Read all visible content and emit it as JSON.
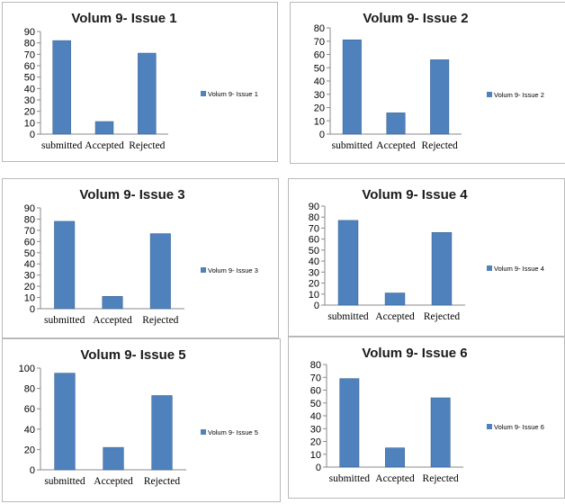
{
  "chart_data": [
    {
      "type": "bar",
      "title": "Volum 9- Issue 1",
      "categories": [
        "submitted",
        "Accepted",
        "Rejected"
      ],
      "series": [
        {
          "name": "Volum 9- Issue 1",
          "values": [
            82,
            11,
            71
          ]
        }
      ],
      "ylim": [
        0,
        90
      ],
      "yticks": [
        0,
        10,
        20,
        30,
        40,
        50,
        60,
        70,
        80,
        90
      ],
      "grid": false,
      "legend": "right",
      "color": "#4f81bd"
    },
    {
      "type": "bar",
      "title": "Volum 9- Issue 2",
      "categories": [
        "submitted",
        "Accepted",
        "Rejected"
      ],
      "series": [
        {
          "name": "Volum 9- Issue 2",
          "values": [
            71,
            16,
            56
          ]
        }
      ],
      "ylim": [
        0,
        80
      ],
      "yticks": [
        0,
        10,
        20,
        30,
        40,
        50,
        60,
        70,
        80
      ],
      "grid": false,
      "legend": "right",
      "color": "#4f81bd"
    },
    {
      "type": "bar",
      "title": "Volum 9- Issue 3",
      "categories": [
        "submitted",
        "Accepted",
        "Rejected"
      ],
      "series": [
        {
          "name": "Volum 9- Issue 3",
          "values": [
            78,
            11,
            67
          ]
        }
      ],
      "ylim": [
        0,
        90
      ],
      "yticks": [
        0,
        10,
        20,
        30,
        40,
        50,
        60,
        70,
        80,
        90
      ],
      "grid": false,
      "legend": "right",
      "color": "#4f81bd"
    },
    {
      "type": "bar",
      "title": "Volum 9- Issue 4",
      "categories": [
        "submitted",
        "Accepted",
        "Rejected"
      ],
      "series": [
        {
          "name": "Volum 9- Issue 4",
          "values": [
            77,
            11,
            66
          ]
        }
      ],
      "ylim": [
        0,
        90
      ],
      "yticks": [
        0,
        10,
        20,
        30,
        40,
        50,
        60,
        70,
        80,
        90
      ],
      "grid": false,
      "legend": "right",
      "color": "#4f81bd"
    },
    {
      "type": "bar",
      "title": "Volum 9- Issue 5",
      "categories": [
        "submitted",
        "Accepted",
        "Rejected"
      ],
      "series": [
        {
          "name": "Volum 9- Issue 5",
          "values": [
            95,
            22,
            73
          ]
        }
      ],
      "ylim": [
        0,
        100
      ],
      "yticks": [
        0,
        20,
        40,
        60,
        80,
        100
      ],
      "grid": false,
      "legend": "right",
      "color": "#4f81bd"
    },
    {
      "type": "bar",
      "title": "Volum 9- Issue 6",
      "categories": [
        "submitted",
        "Accepted",
        "Rejected"
      ],
      "series": [
        {
          "name": "Volum 9- Issue 6",
          "values": [
            69,
            15,
            54
          ]
        }
      ],
      "ylim": [
        0,
        80
      ],
      "yticks": [
        0,
        10,
        20,
        30,
        40,
        50,
        60,
        70,
        80
      ],
      "grid": false,
      "legend": "right",
      "color": "#4f81bd"
    }
  ]
}
